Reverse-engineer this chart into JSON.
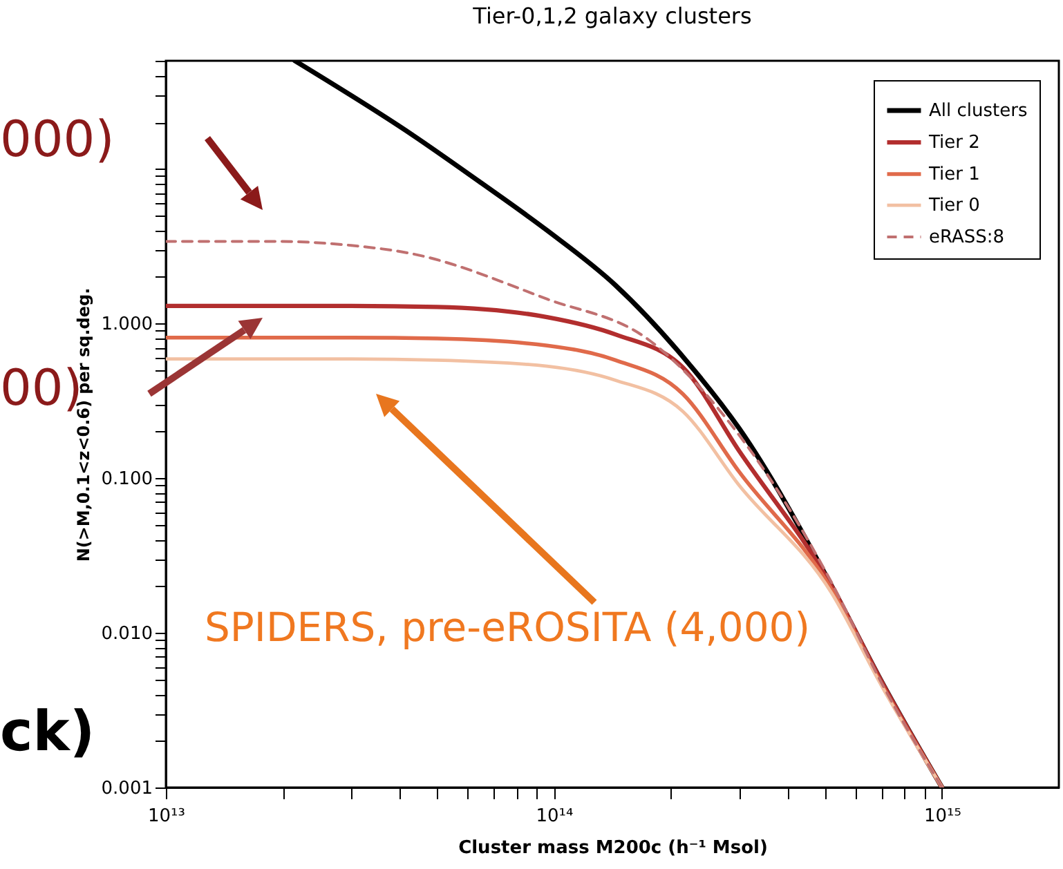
{
  "chart_data": {
    "type": "line",
    "title": "Tier-0,1,2 galaxy clusters",
    "xlabel": "Cluster mass M200c (h⁻¹ Msol)",
    "ylabel": "N(>M,0.1<z<0.6) per sq.deg.",
    "log": "xy",
    "legend": "top right",
    "xlim": [
      10000000000000.0,
      2000000000000000.0
    ],
    "ylim": [
      0.001,
      50
    ],
    "xticks": [
      {
        "value": 10000000000000.0,
        "label": "10¹³"
      },
      {
        "value": 20000000000000.0,
        "label": null
      },
      {
        "value": 30000000000000.0,
        "label": null
      },
      {
        "value": 40000000000000.0,
        "label": null
      },
      {
        "value": 50000000000000.0,
        "label": null
      },
      {
        "value": 60000000000000.0,
        "label": null
      },
      {
        "value": 70000000000000.0,
        "label": null
      },
      {
        "value": 80000000000000.0,
        "label": null
      },
      {
        "value": 90000000000000.0,
        "label": null
      },
      {
        "value": 100000000000000.0,
        "label": "10¹⁴"
      },
      {
        "value": 200000000000000.0,
        "label": null
      },
      {
        "value": 300000000000000.0,
        "label": null
      },
      {
        "value": 400000000000000.0,
        "label": null
      },
      {
        "value": 500000000000000.0,
        "label": null
      },
      {
        "value": 600000000000000.0,
        "label": null
      },
      {
        "value": 700000000000000.0,
        "label": null
      },
      {
        "value": 800000000000000.0,
        "label": null
      },
      {
        "value": 900000000000000.0,
        "label": null
      },
      {
        "value": 1000000000000000.0,
        "label": "10¹⁵"
      }
    ],
    "yticks": [
      0.001,
      {
        "value": 0.002,
        "label": null
      },
      {
        "value": 0.003,
        "label": null
      },
      {
        "value": 0.004,
        "label": null
      },
      {
        "value": 0.005,
        "label": null
      },
      {
        "value": 0.006,
        "label": null
      },
      {
        "value": 0.007,
        "label": null
      },
      {
        "value": 0.008,
        "label": null
      },
      {
        "value": 0.009,
        "label": null
      },
      {
        "value": 0.01,
        "label": "0.010"
      },
      {
        "value": 0.02,
        "label": null
      },
      {
        "value": 0.03,
        "label": null
      },
      {
        "value": 0.04,
        "label": null
      },
      {
        "value": 0.05,
        "label": null
      },
      {
        "value": 0.06,
        "label": null
      },
      {
        "value": 0.07,
        "label": null
      },
      {
        "value": 0.08,
        "label": null
      },
      {
        "value": 0.09,
        "label": null
      },
      {
        "value": 0.1,
        "label": "0.100"
      },
      {
        "value": 0.2,
        "label": null
      },
      {
        "value": 0.3,
        "label": null
      },
      {
        "value": 0.4,
        "label": null
      },
      {
        "value": 0.5,
        "label": null
      },
      {
        "value": 0.6,
        "label": null
      },
      {
        "value": 0.7,
        "label": null
      },
      {
        "value": 0.8,
        "label": null
      },
      {
        "value": 0.9,
        "label": null
      },
      {
        "value": 1,
        "label": "1.000"
      },
      {
        "value": 2,
        "label": null
      },
      {
        "value": 3,
        "label": null
      },
      {
        "value": 4,
        "label": null
      },
      {
        "value": 5,
        "label": null
      },
      {
        "value": 6,
        "label": null
      },
      {
        "value": 7,
        "label": null
      },
      {
        "value": 8,
        "label": null
      },
      {
        "value": 9,
        "label": null
      },
      {
        "value": 10,
        "label": null
      },
      {
        "value": 20,
        "label": null
      },
      {
        "value": 30,
        "label": null
      },
      {
        "value": 40,
        "label": null
      },
      {
        "value": 50,
        "label": null
      }
    ],
    "series": [
      {
        "name": "All clusters",
        "color": "#000000",
        "line_style": "solid",
        "x": [
          21500000000000.0,
          43000000000000.0,
          65000000000000.0,
          96000000000000.0,
          144000000000000.0,
          215000000000000.0,
          300000000000000.0,
          520000000000000.0,
          700000000000000.0,
          1000000000000000.0
        ],
        "values": [
          50,
          16.7,
          8.1,
          4.0,
          1.77,
          0.61,
          0.21,
          0.02,
          0.0048,
          0.001
        ]
      },
      {
        "name": "Tier 2",
        "color": "#b22e2e",
        "line_style": "solid",
        "x": [
          10000000000000.0,
          30000000000000.0,
          50000000000000.0,
          96000000000000.0,
          144000000000000.0,
          215000000000000.0,
          300000000000000.0,
          520000000000000.0,
          700000000000000.0,
          1000000000000000.0
        ],
        "values": [
          1.3,
          1.3,
          1.28,
          1.1,
          0.85,
          0.52,
          0.15,
          0.02,
          0.0048,
          0.001
        ]
      },
      {
        "name": "Tier 1",
        "color": "#e06a4a",
        "line_style": "solid",
        "x": [
          10000000000000.0,
          30000000000000.0,
          50000000000000.0,
          96000000000000.0,
          144000000000000.0,
          215000000000000.0,
          300000000000000.0,
          520000000000000.0,
          700000000000000.0,
          1000000000000000.0
        ],
        "values": [
          0.81,
          0.81,
          0.8,
          0.72,
          0.58,
          0.35,
          0.11,
          0.019,
          0.0046,
          0.001
        ]
      },
      {
        "name": "Tier 0",
        "color": "#f2c0a2",
        "line_style": "solid",
        "x": [
          10000000000000.0,
          30000000000000.0,
          50000000000000.0,
          96000000000000.0,
          144000000000000.0,
          215000000000000.0,
          300000000000000.0,
          520000000000000.0,
          700000000000000.0,
          1000000000000000.0
        ],
        "values": [
          0.59,
          0.59,
          0.58,
          0.53,
          0.43,
          0.27,
          0.09,
          0.018,
          0.0045,
          0.001
        ]
      },
      {
        "name": "eRASS:8",
        "color": "#c07070",
        "line_style": "dashed",
        "x": [
          10000000000000.0,
          19000000000000.0,
          30000000000000.0,
          43000000000000.0,
          96000000000000.0,
          176000000000000.0,
          300000000000000.0,
          520000000000000.0,
          700000000000000.0,
          1000000000000000.0
        ],
        "values": [
          3.4,
          3.4,
          3.2,
          2.83,
          1.44,
          0.78,
          0.19,
          0.021,
          0.0047,
          0.001
        ]
      }
    ],
    "annotations": [
      "SPIDERS, pre-eROSITA (4,000)",
      "000)",
      "00)",
      "ck)"
    ]
  }
}
